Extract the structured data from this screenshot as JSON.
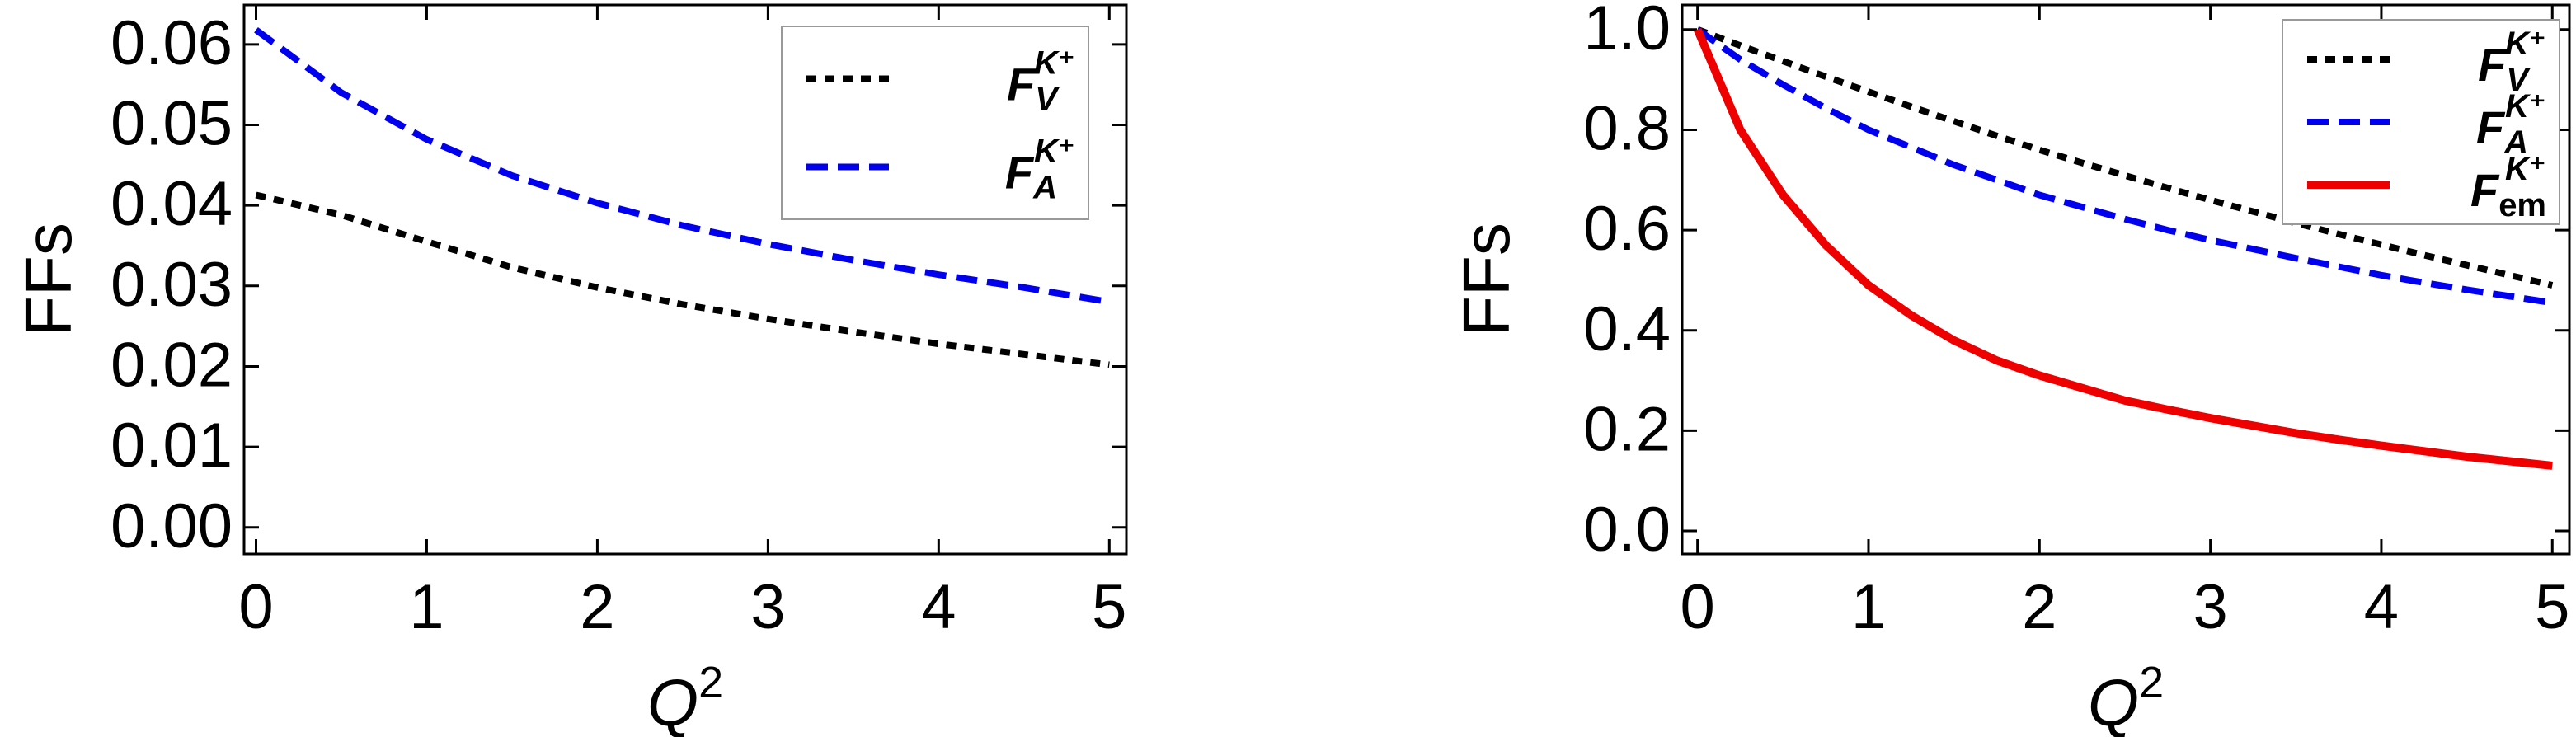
{
  "chart_data": [
    {
      "type": "line",
      "y_label": "FFs",
      "x_label": {
        "symbol": "Q",
        "sup": "2"
      },
      "x": [
        0,
        0.5,
        1,
        1.5,
        2,
        2.5,
        3,
        3.5,
        4,
        4.5,
        5
      ],
      "series": [
        {
          "name": {
            "symbol": "F",
            "sub": "V",
            "sup": "K⁺"
          },
          "color": "#000000",
          "dash": "dotted",
          "values": [
            0.0413,
            0.0388,
            0.0355,
            0.0323,
            0.0298,
            0.0277,
            0.0259,
            0.0243,
            0.0228,
            0.0215,
            0.0202
          ]
        },
        {
          "name": {
            "symbol": "F",
            "sub": "A",
            "sup": "K⁺"
          },
          "color": "#0000ee",
          "dash": "dashed",
          "values": [
            0.0618,
            0.054,
            0.0482,
            0.0437,
            0.0403,
            0.0375,
            0.0352,
            0.0332,
            0.0314,
            0.0298,
            0.028
          ]
        }
      ],
      "xlim": [
        -0.07,
        5.1
      ],
      "ylim": [
        -0.0033,
        0.0649
      ],
      "xticks": [
        0,
        1,
        2,
        3,
        4,
        5
      ],
      "yticks": [
        {
          "value": 0,
          "label": "0.00"
        },
        0.01,
        0.02,
        0.03,
        0.04,
        0.05,
        0.06
      ],
      "legend": "upper right"
    },
    {
      "type": "line",
      "y_label": "FFs",
      "x_label": {
        "symbol": "Q",
        "sup": "2"
      },
      "x": [
        0,
        0.25,
        0.5,
        0.75,
        1,
        1.25,
        1.5,
        1.75,
        2,
        2.25,
        2.5,
        2.75,
        3,
        3.25,
        3.5,
        3.75,
        4,
        4.25,
        4.5,
        4.75,
        5
      ],
      "series": [
        {
          "name": {
            "symbol": "F",
            "sub": "V",
            "sup": "K⁺"
          },
          "color": "#000000",
          "dash": "dotted",
          "values": [
            1.0,
            0.968,
            0.937,
            0.906,
            0.876,
            0.846,
            0.817,
            0.788,
            0.76,
            0.734,
            0.709,
            0.684,
            0.66,
            0.637,
            0.614,
            0.592,
            0.571,
            0.55,
            0.53,
            0.51,
            0.49
          ]
        },
        {
          "name": {
            "symbol": "F",
            "sub": "A",
            "sup": "K⁺"
          },
          "color": "#0000ee",
          "dash": "dashed",
          "values": [
            1.0,
            0.94,
            0.89,
            0.843,
            0.8,
            0.765,
            0.73,
            0.7,
            0.67,
            0.646,
            0.622,
            0.6,
            0.58,
            0.562,
            0.544,
            0.527,
            0.51,
            0.495,
            0.481,
            0.468,
            0.455
          ]
        },
        {
          "name": {
            "symbol": "F",
            "sub": "em",
            "sup": "K⁺"
          },
          "color": "#ee0000",
          "dash": "solid",
          "values": [
            1.0,
            0.8,
            0.67,
            0.57,
            0.49,
            0.43,
            0.38,
            0.34,
            0.31,
            0.285,
            0.26,
            0.242,
            0.225,
            0.21,
            0.195,
            0.182,
            0.17,
            0.159,
            0.148,
            0.139,
            0.13
          ]
        }
      ],
      "xlim": [
        -0.09,
        5.1
      ],
      "ylim": [
        -0.046,
        1.049
      ],
      "xticks": [
        0,
        1,
        2,
        3,
        4,
        5
      ],
      "yticks": [
        {
          "value": 0,
          "label": "0.0"
        },
        0.2,
        0.4,
        0.6,
        0.8,
        {
          "value": 1,
          "label": "1.0"
        }
      ],
      "legend": "upper right"
    }
  ]
}
